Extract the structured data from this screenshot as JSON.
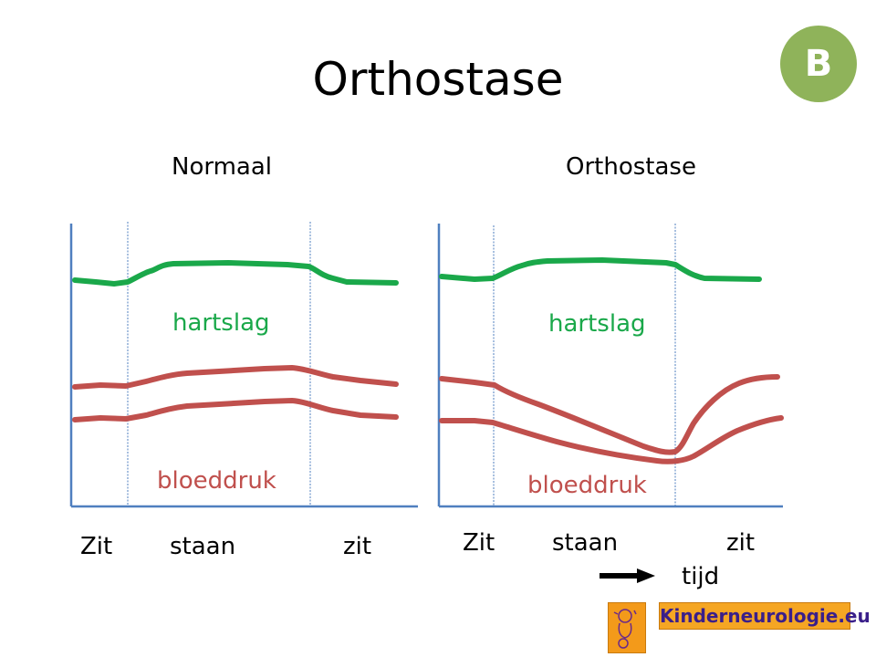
{
  "slide": {
    "title": "Orthostase",
    "badge": "B",
    "logo_text": "Kinderneurologie.eu"
  },
  "panels": [
    {
      "title": "Normaal",
      "heart_label": "hartslag",
      "bp_label": "bloeddruk",
      "phases": [
        "Zit",
        "staan",
        "zit"
      ]
    },
    {
      "title": "Orthostase",
      "heart_label": "hartslag",
      "bp_label": "bloeddruk",
      "phases": [
        "Zit",
        "staan",
        "zit"
      ],
      "time_label": "tijd"
    }
  ],
  "colors": {
    "heart": "#1aa84a",
    "bp": "#c0504d",
    "axis": "#4f7fbf",
    "divider": "#4f7fbf",
    "badge": "#8fb35a",
    "logo_bg": "#f5a623",
    "logo_text": "#3a1f8a"
  },
  "icons": {
    "arrow": "right-arrow-icon",
    "logo": "kinderneurologie-logo-icon"
  }
}
